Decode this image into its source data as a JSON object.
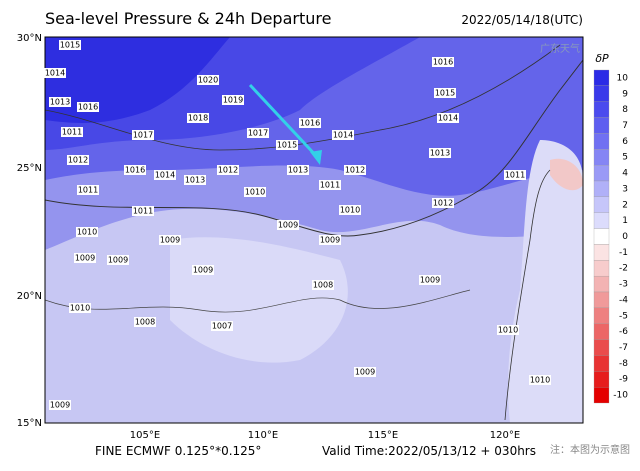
{
  "header": {
    "title": "Sea-level Pressure & 24h Departure",
    "time": "2022/05/14/18(UTC)",
    "logo": "广东天气"
  },
  "axes": {
    "lat": [
      "30°N",
      "25°N",
      "20°N",
      "15°N"
    ],
    "lon": [
      "105°E",
      "110°E",
      "115°E",
      "120°E"
    ]
  },
  "colorbar": {
    "title": "δP",
    "levels": [
      "10",
      "9",
      "8",
      "7",
      "6",
      "5",
      "4",
      "3",
      "2",
      "1",
      "0",
      "-1",
      "-2",
      "-3",
      "-4",
      "-5",
      "-6",
      "-7",
      "-8",
      "-9",
      "-10"
    ],
    "colors": [
      "#2b2be6",
      "#3a3aea",
      "#4b4bee",
      "#5e5ef0",
      "#7070f2",
      "#8585f4",
      "#9a9af6",
      "#b0b0f8",
      "#c6c6fa",
      "#dcdcfc",
      "#ffffff",
      "#fbe3e3",
      "#f7cccc",
      "#f3b3b3",
      "#f09a9a",
      "#ee8080",
      "#ec6666",
      "#ea4c4c",
      "#e83333",
      "#e61c1c",
      "#e40000"
    ]
  },
  "contour_labels": [
    "1015",
    "1014",
    "1013",
    "1016",
    "1011",
    "1012",
    "1011",
    "1016",
    "1017",
    "1018",
    "1019",
    "1020",
    "1017",
    "1016",
    "1015",
    "1014",
    "1013",
    "1013",
    "1012",
    "1014",
    "1012",
    "1011",
    "1010",
    "1010",
    "1011",
    "1010",
    "1009",
    "1009",
    "1009",
    "1009",
    "1009",
    "1008",
    "1007",
    "1008",
    "1010",
    "1009",
    "1009",
    "1009",
    "1010",
    "1010",
    "1011",
    "1012",
    "1013",
    "1014",
    "1015",
    "1016",
    "1009"
  ],
  "footer": {
    "model": "FINE ECMWF 0.125°*0.125°",
    "valid": "Valid Time:2022/05/13/12 + 030hrs",
    "note": "注：本图为示意图"
  }
}
